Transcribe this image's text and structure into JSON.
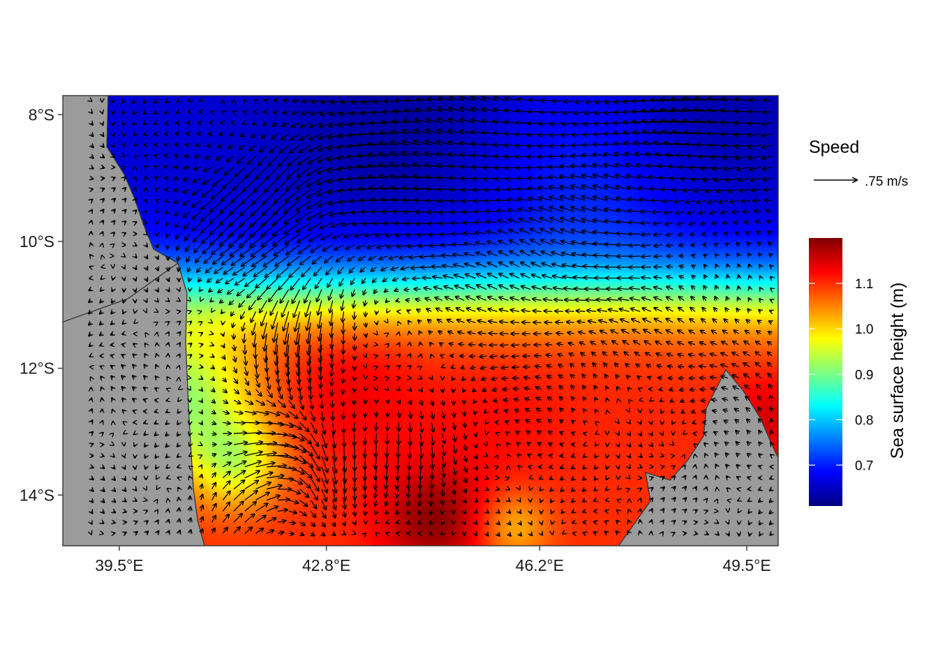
{
  "map": {
    "extent": {
      "lon": [
        38.6,
        50.0
      ],
      "lat": [
        -14.8,
        -7.7
      ]
    },
    "x_ticks": [
      {
        "value": 39.5,
        "label": "39.5°E"
      },
      {
        "value": 42.8,
        "label": "42.8°E"
      },
      {
        "value": 46.2,
        "label": "46.2°E"
      },
      {
        "value": 49.5,
        "label": "49.5°E"
      }
    ],
    "y_ticks": [
      {
        "value": -8,
        "label": "8°S"
      },
      {
        "value": -10,
        "label": "10°S"
      },
      {
        "value": -12,
        "label": "12°S"
      },
      {
        "value": -14,
        "label": "14°S"
      }
    ],
    "land_color": "#9b9b9b",
    "ssh_features": [
      {
        "lon": 44.0,
        "lat": -8.1,
        "ssh": 0.63,
        "sigma": 1.4
      },
      {
        "lon": 41.1,
        "lat": -8.2,
        "ssh": 0.66,
        "sigma": 0.7
      },
      {
        "lon": 48.8,
        "lat": -8.0,
        "ssh": 0.63,
        "sigma": 1.2
      },
      {
        "lon": 47.0,
        "lat": -9.0,
        "ssh": 0.71,
        "sigma": 1.2
      },
      {
        "lon": 43.2,
        "lat": -12.2,
        "ssh": 1.13,
        "sigma": 0.8
      },
      {
        "lon": 45.5,
        "lat": -12.8,
        "ssh": 1.12,
        "sigma": 0.9
      },
      {
        "lon": 47.9,
        "lat": -12.3,
        "ssh": 1.1,
        "sigma": 0.8
      },
      {
        "lon": 44.5,
        "lat": -14.4,
        "ssh": 1.19,
        "sigma": 0.6
      },
      {
        "lon": 49.9,
        "lat": -12.8,
        "ssh": 1.15,
        "sigma": 0.5
      },
      {
        "lon": 41.4,
        "lat": -13.5,
        "ssh": 0.98,
        "sigma": 0.5
      },
      {
        "lon": 45.8,
        "lat": -14.5,
        "ssh": 1.02,
        "sigma": 0.4
      },
      {
        "lon": 40.5,
        "lat": -12.5,
        "ssh": 0.92,
        "sigma": 0.8
      }
    ],
    "current_features": [
      {
        "lon": 42.0,
        "lat": -9.6,
        "u": -0.5,
        "v": -0.45,
        "sigma": 0.9
      },
      {
        "lon": 44.5,
        "lat": -8.4,
        "u": -0.6,
        "v": 0.05,
        "sigma": 1.3
      },
      {
        "lon": 48.5,
        "lat": -8.0,
        "u": -0.7,
        "v": 0.0,
        "sigma": 1.1
      },
      {
        "lon": 42.3,
        "lat": -11.5,
        "u": 0.05,
        "v": -0.6,
        "sigma": 0.6
      },
      {
        "lon": 42.7,
        "lat": -13.3,
        "u": 0.1,
        "v": -0.55,
        "sigma": 0.6
      },
      {
        "lon": 41.8,
        "lat": -13.2,
        "u": 0.55,
        "v": 0.1,
        "sigma": 0.5
      },
      {
        "lon": 41.5,
        "lat": -14.3,
        "u": 0.35,
        "v": 0.3,
        "sigma": 0.5
      },
      {
        "lon": 44.4,
        "lat": -13.5,
        "u": 0.0,
        "v": -0.4,
        "sigma": 0.6
      },
      {
        "lon": 46.7,
        "lat": -10.7,
        "u": -0.35,
        "v": 0.1,
        "sigma": 1.2
      },
      {
        "lon": 49.6,
        "lat": -11.8,
        "u": -0.25,
        "v": 0.2,
        "sigma": 0.6
      }
    ]
  },
  "legend": {
    "speed": {
      "title": "Speed",
      "label": ".75 m/s",
      "value": 0.75
    },
    "colorbar": {
      "title": "Sea surface height (m)",
      "range": [
        0.61,
        1.2
      ],
      "ticks": [
        {
          "value": 0.7,
          "label": "0.7"
        },
        {
          "value": 0.8,
          "label": "0.8"
        },
        {
          "value": 0.9,
          "label": "0.9"
        },
        {
          "value": 1.0,
          "label": "1.0"
        },
        {
          "value": 1.1,
          "label": "1.1"
        }
      ],
      "palette": [
        "#00007f",
        "#0000ff",
        "#007fff",
        "#00ffff",
        "#7fff7f",
        "#ffff00",
        "#ff7f00",
        "#ff0000",
        "#7f0000"
      ]
    }
  }
}
